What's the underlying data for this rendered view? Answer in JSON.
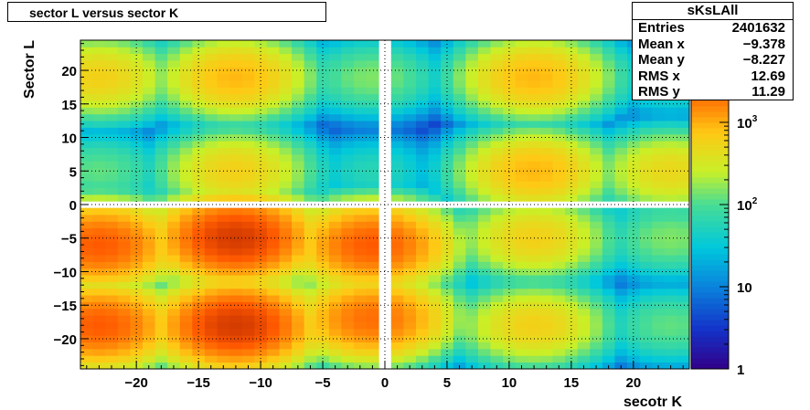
{
  "title": "sector L versus sector K",
  "stats": {
    "name": "sKsLAll",
    "rows": [
      {
        "label": "Entries",
        "value": "2401632"
      },
      {
        "label": "Mean x",
        "value": "−9.378"
      },
      {
        "label": "Mean y",
        "value": "−8.227"
      },
      {
        "label": "RMS x",
        "value": "12.69"
      },
      {
        "label": "RMS y",
        "value": "11.29"
      }
    ]
  },
  "chart_data": {
    "type": "heatmap",
    "title": "sector L versus sector K",
    "xlabel": "secotr K",
    "ylabel": "Sector L",
    "xlim": [
      -24.5,
      24.5
    ],
    "ylim": [
      -24.5,
      24.5
    ],
    "x_ticks": [
      "−20",
      "−15",
      "−10",
      "−5",
      "0",
      "5",
      "10",
      "15",
      "20"
    ],
    "y_ticks": [
      "20",
      "15",
      "10",
      "5",
      "0",
      "−5",
      "−10",
      "−15",
      "−20"
    ],
    "z_scale": "log",
    "z_range": [
      1,
      10000
    ],
    "colorbar_ticks": [
      "1",
      "10",
      "10²",
      "10³"
    ],
    "grid": true,
    "empty_gaps": {
      "x": [
        0
      ],
      "y": [
        0
      ]
    },
    "blobs": [
      {
        "x": -23,
        "y": 19,
        "peak": 600
      },
      {
        "x": -12,
        "y": 19,
        "peak": 900
      },
      {
        "x": -1,
        "y": 19,
        "peak": 150
      },
      {
        "x": 12,
        "y": 19,
        "peak": 900
      },
      {
        "x": 23,
        "y": 19,
        "peak": 80
      },
      {
        "x": -23,
        "y": 5,
        "peak": 120
      },
      {
        "x": -12,
        "y": 5,
        "peak": 600
      },
      {
        "x": -1,
        "y": 5,
        "peak": 60
      },
      {
        "x": 12,
        "y": 5,
        "peak": 900
      },
      {
        "x": 23,
        "y": 5,
        "peak": 500
      },
      {
        "x": -23,
        "y": -6,
        "peak": 2500
      },
      {
        "x": -12,
        "y": -5,
        "peak": 4000
      },
      {
        "x": -1,
        "y": -6,
        "peak": 2500
      },
      {
        "x": 12,
        "y": -5,
        "peak": 600
      },
      {
        "x": 23,
        "y": -5,
        "peak": 150
      },
      {
        "x": -23,
        "y": -18,
        "peak": 2500
      },
      {
        "x": -12,
        "y": -18,
        "peak": 4000
      },
      {
        "x": -1,
        "y": -17,
        "peak": 2000
      },
      {
        "x": 12,
        "y": -18,
        "peak": 600
      },
      {
        "x": 23,
        "y": -18,
        "peak": 120
      }
    ]
  }
}
